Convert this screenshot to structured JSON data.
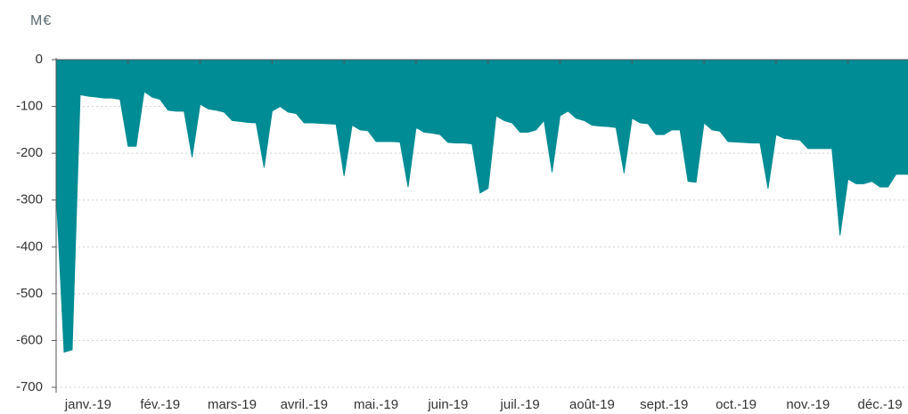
{
  "chart_data": {
    "type": "area",
    "y_label": "M€",
    "color": "#008c95",
    "categories": [
      null,
      null,
      null,
      null,
      "janv.-19",
      null,
      null,
      null,
      null,
      null,
      null,
      null,
      null,
      "fév.-19",
      null,
      null,
      null,
      null,
      null,
      null,
      null,
      null,
      "mars-19",
      null,
      null,
      null,
      null,
      null,
      null,
      null,
      null,
      "avril.-19",
      null,
      null,
      null,
      null,
      null,
      null,
      null,
      null,
      "mai.-19",
      null,
      null,
      null,
      null,
      null,
      null,
      null,
      null,
      "juin-19",
      null,
      null,
      null,
      null,
      null,
      null,
      null,
      null,
      "juil.-19",
      null,
      null,
      null,
      null,
      null,
      null,
      null,
      null,
      "août-19",
      null,
      null,
      null,
      null,
      null,
      null,
      null,
      null,
      "sept.-19",
      null,
      null,
      null,
      null,
      null,
      null,
      null,
      null,
      "oct.-19",
      null,
      null,
      null,
      null,
      null,
      null,
      null,
      null,
      "nov.-19",
      null,
      null,
      null,
      null,
      null,
      null,
      null,
      null,
      "déc.-19",
      null,
      null,
      null
    ],
    "values": [
      -280,
      -625,
      -620,
      -75,
      -78,
      -80,
      -82,
      -82,
      -85,
      -185,
      -185,
      -68,
      -80,
      -85,
      -108,
      -110,
      -110,
      -208,
      -95,
      -105,
      -108,
      -112,
      -130,
      -132,
      -134,
      -135,
      -230,
      -110,
      -100,
      -112,
      -115,
      -135,
      -135,
      -136,
      -137,
      -138,
      -248,
      -140,
      -150,
      -152,
      -175,
      -175,
      -175,
      -176,
      -272,
      -145,
      -155,
      -157,
      -160,
      -177,
      -178,
      -178,
      -180,
      -285,
      -275,
      -120,
      -130,
      -135,
      -155,
      -155,
      -150,
      -130,
      -240,
      -120,
      -110,
      -125,
      -130,
      -140,
      -142,
      -143,
      -145,
      -242,
      -125,
      -135,
      -137,
      -160,
      -160,
      -150,
      -150,
      -260,
      -262,
      -135,
      -150,
      -153,
      -175,
      -176,
      -177,
      -178,
      -178,
      -275,
      -160,
      -168,
      -170,
      -172,
      -190,
      -190,
      -190,
      -190,
      -375,
      -255,
      -265,
      -265,
      -260,
      -272,
      -272,
      -245,
      -245
    ],
    "ylim": [
      -700,
      0
    ],
    "yticks": [
      0,
      -100,
      -200,
      -300,
      -400,
      -500,
      -600,
      -700
    ],
    "grid": true
  }
}
